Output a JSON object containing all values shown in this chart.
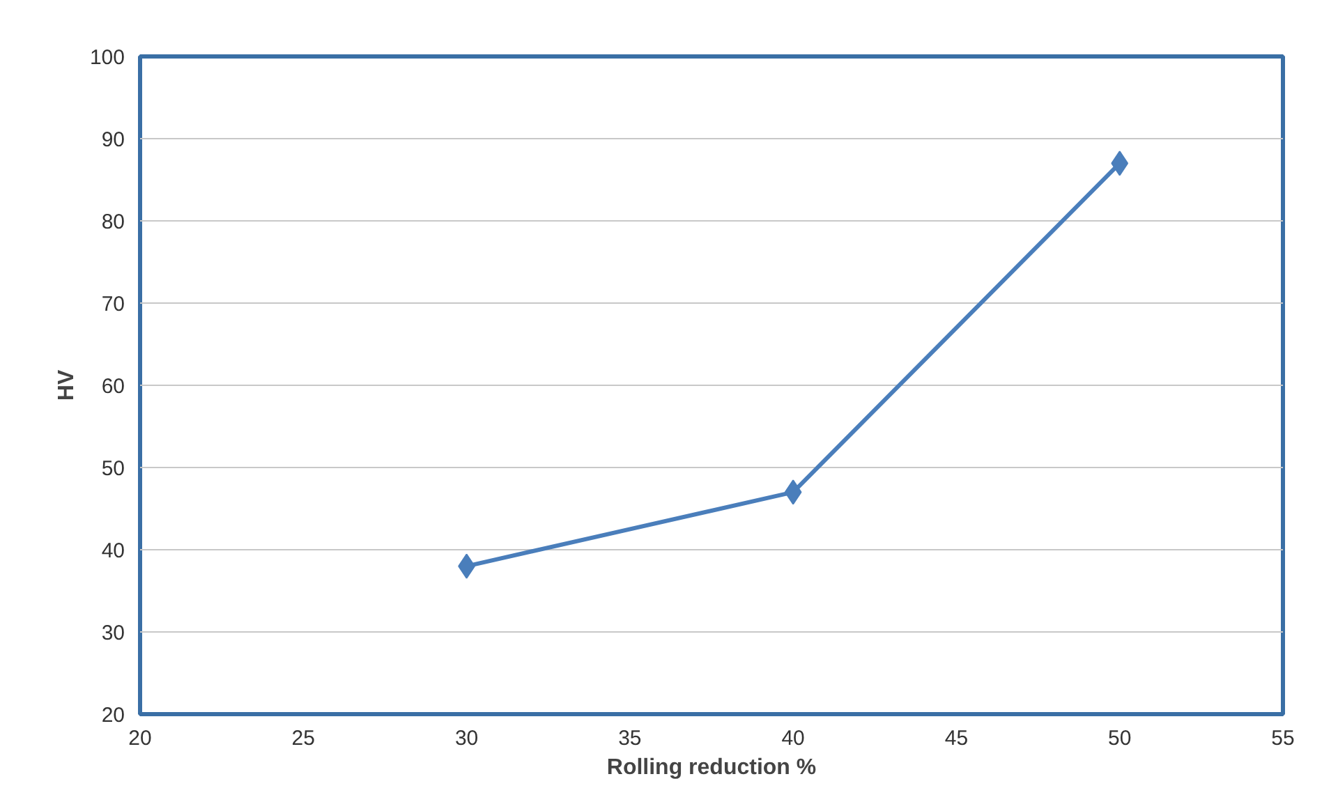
{
  "chart_data": {
    "type": "line",
    "xlabel": "Rolling reduction %",
    "ylabel": "HV",
    "x": [
      30,
      40,
      50
    ],
    "series": [
      {
        "color": "#4a7ebb",
        "values": [
          38,
          47,
          87
        ]
      }
    ],
    "xlim": [
      20,
      55
    ],
    "xticks": [
      20,
      25,
      30,
      35,
      40,
      45,
      50,
      55
    ],
    "ylim": [
      20,
      100
    ],
    "yticks": [
      20,
      30,
      40,
      50,
      60,
      70,
      80,
      90,
      100
    ],
    "grid": "y",
    "marker": "diamond",
    "line_style": "solid"
  }
}
